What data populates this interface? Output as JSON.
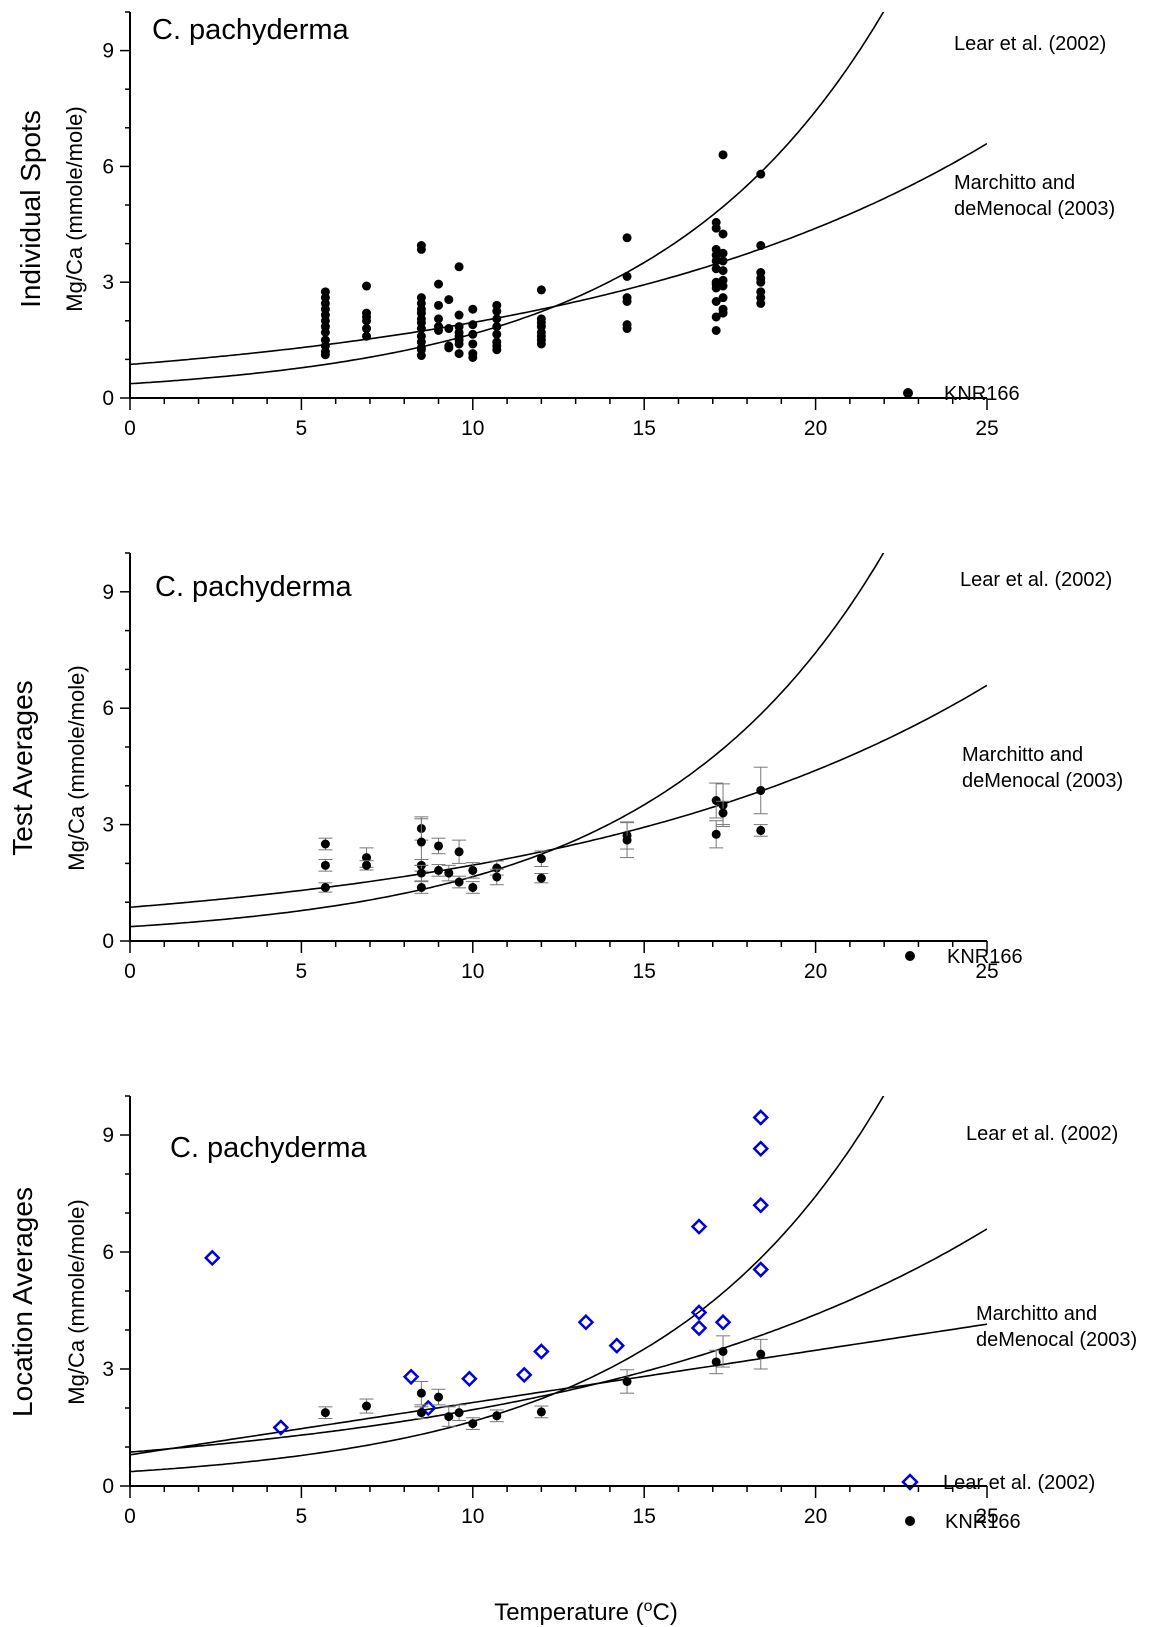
{
  "figure": {
    "x_label": "Temperature (ºC)",
    "x_label_text": "Temperature (",
    "x_label_sup": "o",
    "x_label_end": "C)"
  },
  "chart_data": [
    {
      "type": "scatter",
      "title": "C. pachyderma",
      "ylabel_outer": "Individual Spots",
      "ylabel": "Mg/Ca (mmole/mole)",
      "xlim": [
        0,
        25
      ],
      "ylim": [
        0,
        10
      ],
      "xticks": [
        "0",
        "5",
        "10",
        "15",
        "20",
        "25"
      ],
      "yticks": [
        "0",
        "3",
        "6",
        "9"
      ],
      "curves": [
        {
          "name": "Lear et al. (2002)",
          "label": "Lear et al. (2002)",
          "form": "exponential",
          "a": 0.37,
          "b": 0.15
        },
        {
          "name": "Marchitto and deMenocal (2003)",
          "label_lines": [
            "Marchitto and",
            "deMenocal (2003)"
          ],
          "form": "exponential",
          "a": 0.87,
          "b": 0.081
        }
      ],
      "legend": [
        {
          "label": "KNR166",
          "marker": "dot"
        }
      ],
      "series": [
        {
          "name": "KNR166",
          "marker": "dot",
          "points": [
            [
              5.7,
              2.75
            ],
            [
              5.7,
              2.6
            ],
            [
              5.7,
              2.45
            ],
            [
              5.7,
              2.3
            ],
            [
              5.7,
              2.15
            ],
            [
              5.7,
              2.0
            ],
            [
              5.7,
              1.85
            ],
            [
              5.7,
              1.7
            ],
            [
              5.7,
              1.5
            ],
            [
              5.7,
              1.35
            ],
            [
              5.7,
              1.2
            ],
            [
              5.7,
              1.12
            ],
            [
              6.9,
              2.9
            ],
            [
              6.9,
              2.2
            ],
            [
              6.9,
              2.1
            ],
            [
              6.9,
              2.0
            ],
            [
              6.9,
              1.8
            ],
            [
              6.9,
              1.6
            ],
            [
              8.5,
              3.95
            ],
            [
              8.5,
              3.85
            ],
            [
              8.5,
              2.6
            ],
            [
              8.5,
              2.45
            ],
            [
              8.5,
              2.3
            ],
            [
              8.5,
              2.2
            ],
            [
              8.5,
              2.05
            ],
            [
              8.5,
              1.95
            ],
            [
              8.5,
              1.8
            ],
            [
              8.5,
              1.6
            ],
            [
              8.5,
              1.45
            ],
            [
              8.5,
              1.3
            ],
            [
              8.5,
              1.25
            ],
            [
              8.5,
              1.1
            ],
            [
              9.0,
              2.95
            ],
            [
              9.0,
              2.4
            ],
            [
              9.0,
              2.05
            ],
            [
              9.0,
              1.85
            ],
            [
              9.0,
              1.75
            ],
            [
              9.3,
              2.55
            ],
            [
              9.3,
              1.8
            ],
            [
              9.3,
              1.35
            ],
            [
              9.3,
              1.3
            ],
            [
              9.6,
              3.4
            ],
            [
              9.6,
              2.15
            ],
            [
              9.6,
              1.85
            ],
            [
              9.6,
              1.7
            ],
            [
              9.6,
              1.6
            ],
            [
              9.6,
              1.5
            ],
            [
              9.6,
              1.4
            ],
            [
              9.6,
              1.15
            ],
            [
              10.0,
              2.3
            ],
            [
              10.0,
              1.9
            ],
            [
              10.0,
              1.65
            ],
            [
              10.0,
              1.4
            ],
            [
              10.0,
              1.15
            ],
            [
              10.0,
              1.05
            ],
            [
              10.7,
              2.4
            ],
            [
              10.7,
              2.25
            ],
            [
              10.7,
              2.05
            ],
            [
              10.7,
              1.85
            ],
            [
              10.7,
              1.65
            ],
            [
              10.7,
              1.45
            ],
            [
              10.7,
              1.35
            ],
            [
              10.7,
              1.25
            ],
            [
              12.0,
              2.8
            ],
            [
              12.0,
              2.05
            ],
            [
              12.0,
              1.95
            ],
            [
              12.0,
              1.85
            ],
            [
              12.0,
              1.7
            ],
            [
              12.0,
              1.6
            ],
            [
              12.0,
              1.5
            ],
            [
              12.0,
              1.4
            ],
            [
              14.5,
              4.15
            ],
            [
              14.5,
              3.15
            ],
            [
              14.5,
              2.6
            ],
            [
              14.5,
              2.5
            ],
            [
              14.5,
              1.9
            ],
            [
              14.5,
              1.8
            ],
            [
              17.1,
              4.55
            ],
            [
              17.1,
              4.4
            ],
            [
              17.1,
              3.85
            ],
            [
              17.1,
              3.7
            ],
            [
              17.1,
              3.55
            ],
            [
              17.1,
              3.35
            ],
            [
              17.1,
              3.0
            ],
            [
              17.1,
              2.95
            ],
            [
              17.1,
              2.85
            ],
            [
              17.1,
              2.5
            ],
            [
              17.1,
              2.1
            ],
            [
              17.1,
              1.75
            ],
            [
              17.3,
              6.3
            ],
            [
              17.3,
              4.25
            ],
            [
              17.3,
              3.75
            ],
            [
              17.3,
              3.55
            ],
            [
              17.3,
              3.3
            ],
            [
              17.3,
              3.05
            ],
            [
              17.3,
              2.9
            ],
            [
              17.3,
              2.6
            ],
            [
              17.3,
              2.3
            ],
            [
              17.3,
              2.2
            ],
            [
              18.4,
              5.8
            ],
            [
              18.4,
              3.95
            ],
            [
              18.4,
              3.25
            ],
            [
              18.4,
              3.1
            ],
            [
              18.4,
              3.0
            ],
            [
              18.4,
              2.75
            ],
            [
              18.4,
              2.6
            ],
            [
              18.4,
              2.45
            ]
          ]
        }
      ]
    },
    {
      "type": "scatter",
      "title": "C. pachyderma",
      "ylabel_outer": "Test Averages",
      "ylabel": "Mg/Ca (mmole/mole)",
      "xlim": [
        0,
        25
      ],
      "ylim": [
        0,
        10
      ],
      "xticks": [
        "0",
        "5",
        "10",
        "15",
        "20",
        "25"
      ],
      "yticks": [
        "0",
        "3",
        "6",
        "9"
      ],
      "curves": [
        {
          "name": "Lear et al. (2002)",
          "label": "Lear et al. (2002)",
          "form": "exponential",
          "a": 0.37,
          "b": 0.15
        },
        {
          "name": "Marchitto and deMenocal (2003)",
          "label_lines": [
            "Marchitto and",
            "deMenocal (2003)"
          ],
          "form": "exponential",
          "a": 0.87,
          "b": 0.081
        }
      ],
      "legend": [
        {
          "label": "KNR166",
          "marker": "dot"
        }
      ],
      "series": [
        {
          "name": "KNR166",
          "marker": "dot",
          "points": [
            [
              5.7,
              2.5,
              0.15
            ],
            [
              5.7,
              1.95,
              0.15
            ],
            [
              5.7,
              1.38,
              0.12
            ],
            [
              6.9,
              2.15,
              0.25
            ],
            [
              6.9,
              1.95,
              0.12
            ],
            [
              8.5,
              2.9,
              0.3
            ],
            [
              8.5,
              2.55,
              0.6
            ],
            [
              8.5,
              1.95,
              0.15
            ],
            [
              8.5,
              1.75,
              0.2
            ],
            [
              8.5,
              1.38,
              0.15
            ],
            [
              9.0,
              2.45,
              0.2
            ],
            [
              9.0,
              1.82,
              0.15
            ],
            [
              9.3,
              1.75,
              0.2
            ],
            [
              9.6,
              2.3,
              0.3
            ],
            [
              9.6,
              1.52,
              0.15
            ],
            [
              10.0,
              1.82,
              0.2
            ],
            [
              10.0,
              1.38,
              0.15
            ],
            [
              10.7,
              1.88,
              0.18
            ],
            [
              10.7,
              1.65,
              0.2
            ],
            [
              12.0,
              2.12,
              0.2
            ],
            [
              12.0,
              1.62,
              0.12
            ],
            [
              14.5,
              2.72,
              0.35
            ],
            [
              14.5,
              2.6,
              0.45
            ],
            [
              17.1,
              3.62,
              0.45
            ],
            [
              17.1,
              2.75,
              0.35
            ],
            [
              17.3,
              3.5,
              0.55
            ],
            [
              17.3,
              3.3,
              0.3
            ],
            [
              18.4,
              3.88,
              0.6
            ],
            [
              18.4,
              2.85,
              0.15
            ]
          ]
        }
      ]
    },
    {
      "type": "scatter",
      "title": "C. pachyderma",
      "ylabel_outer": "Location Averages",
      "ylabel": "Mg/Ca (mmole/mole)",
      "xlabel": "Temperature (ºC)",
      "xlim": [
        0,
        25
      ],
      "ylim": [
        0,
        10
      ],
      "xticks": [
        "0",
        "5",
        "10",
        "15",
        "20",
        "25"
      ],
      "yticks": [
        "0",
        "3",
        "6",
        "9"
      ],
      "curves": [
        {
          "name": "Lear et al. (2002)",
          "label": "Lear et al. (2002)",
          "form": "exponential",
          "a": 0.37,
          "b": 0.15
        },
        {
          "name": "Marchitto and deMenocal (2003)",
          "label_lines": [
            "Marchitto and",
            "deMenocal (2003)"
          ],
          "form": "exponential",
          "a": 0.87,
          "b": 0.081
        },
        {
          "name": "KNR166 fit",
          "form": "linear",
          "a": 0.8,
          "m": 0.134
        }
      ],
      "legend": [
        {
          "label": "Lear et al. (2002)",
          "marker": "diamond",
          "color": "#0000dd"
        },
        {
          "label": "KNR166",
          "marker": "dot"
        }
      ],
      "series": [
        {
          "name": "Lear et al. (2002)",
          "marker": "diamond",
          "color": "#0000dd",
          "points": [
            [
              2.4,
              5.85
            ],
            [
              4.4,
              1.5
            ],
            [
              8.2,
              2.8
            ],
            [
              8.7,
              2.0
            ],
            [
              9.9,
              2.75
            ],
            [
              11.5,
              2.85
            ],
            [
              12.0,
              3.45
            ],
            [
              13.3,
              4.2
            ],
            [
              14.2,
              3.6
            ],
            [
              16.6,
              6.65
            ],
            [
              16.6,
              4.45
            ],
            [
              16.6,
              4.05
            ],
            [
              17.3,
              4.2
            ],
            [
              18.4,
              9.45
            ],
            [
              18.4,
              8.65
            ],
            [
              18.4,
              7.2
            ],
            [
              18.4,
              5.55
            ]
          ]
        },
        {
          "name": "KNR166",
          "marker": "dot",
          "points": [
            [
              5.7,
              1.88,
              0.15
            ],
            [
              6.9,
              2.05,
              0.18
            ],
            [
              8.5,
              2.38,
              0.3
            ],
            [
              8.5,
              1.88,
              0.15
            ],
            [
              9.0,
              2.28,
              0.2
            ],
            [
              9.3,
              1.78,
              0.25
            ],
            [
              9.6,
              1.88,
              0.2
            ],
            [
              10.0,
              1.6,
              0.15
            ],
            [
              10.7,
              1.8,
              0.15
            ],
            [
              12.0,
              1.9,
              0.15
            ],
            [
              14.5,
              2.68,
              0.3
            ],
            [
              17.1,
              3.18,
              0.3
            ],
            [
              17.3,
              3.45,
              0.4
            ],
            [
              18.4,
              3.38,
              0.38
            ]
          ]
        }
      ]
    }
  ]
}
